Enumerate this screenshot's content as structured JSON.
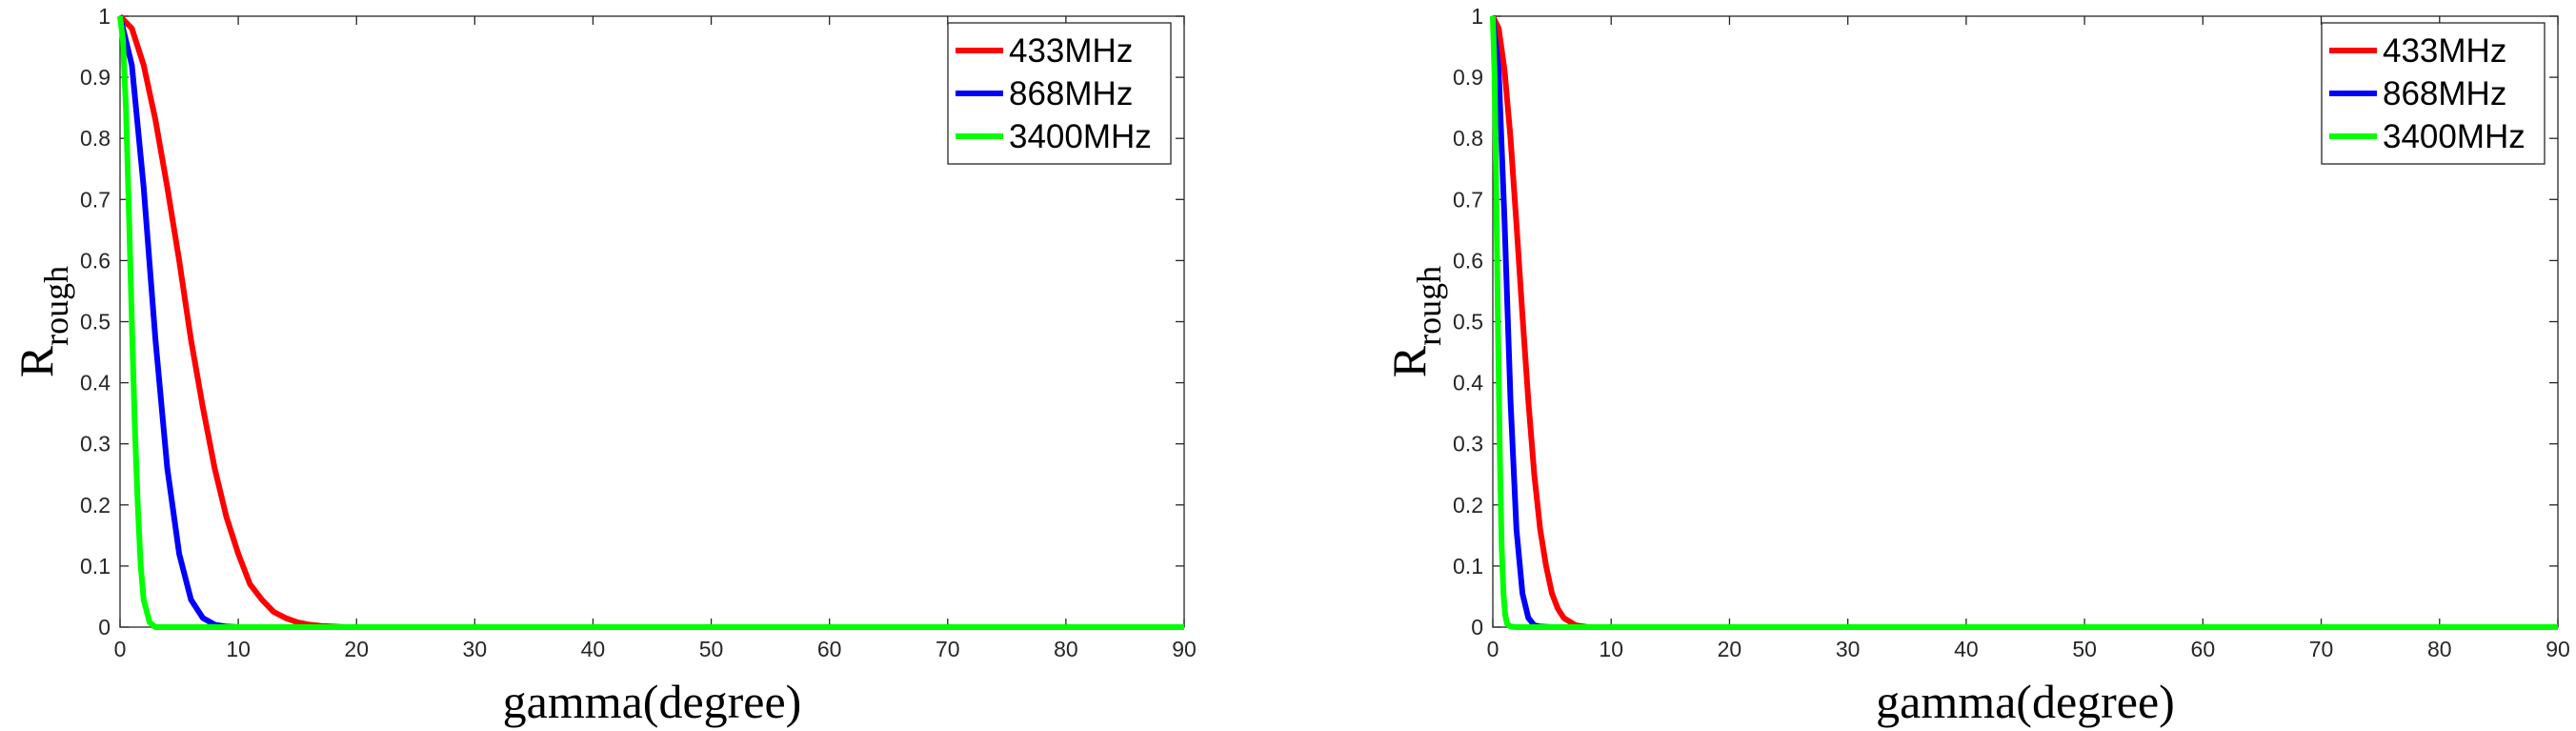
{
  "chart_data": [
    {
      "type": "line",
      "xlabel": "gamma(degree)",
      "ylabel_main": "R",
      "ylabel_sub": "rough",
      "xlim": [
        0,
        90
      ],
      "ylim": [
        0,
        1
      ],
      "xticks": [
        0,
        10,
        20,
        30,
        40,
        50,
        60,
        70,
        80,
        90
      ],
      "yticks": [
        0,
        0.1,
        0.2,
        0.3,
        0.4,
        0.5,
        0.6,
        0.7,
        0.8,
        0.9,
        1
      ],
      "grid": false,
      "legend_position": "top-right",
      "series": [
        {
          "name": "433MHz",
          "color": "#ff0000",
          "x": [
            0,
            1,
            2,
            3,
            4,
            5,
            6,
            7,
            8,
            9,
            10,
            11,
            12,
            13,
            14,
            15,
            16,
            17,
            18,
            19,
            20,
            30,
            40,
            50,
            60,
            70,
            80,
            90
          ],
          "y": [
            1,
            0.98,
            0.92,
            0.83,
            0.72,
            0.6,
            0.47,
            0.36,
            0.26,
            0.18,
            0.12,
            0.07,
            0.045,
            0.025,
            0.015,
            0.008,
            0.004,
            0.002,
            0.001,
            0,
            0,
            0,
            0,
            0,
            0,
            0,
            0,
            0
          ]
        },
        {
          "name": "868MHz",
          "color": "#0000ff",
          "x": [
            0,
            1,
            2,
            3,
            4,
            5,
            6,
            7,
            8,
            9,
            10,
            15,
            20,
            30,
            40,
            50,
            60,
            70,
            80,
            90
          ],
          "y": [
            1,
            0.92,
            0.72,
            0.47,
            0.26,
            0.12,
            0.045,
            0.015,
            0.004,
            0.001,
            0,
            0,
            0,
            0,
            0,
            0,
            0,
            0,
            0,
            0
          ]
        },
        {
          "name": "3400MHz",
          "color": "#00ff00",
          "x": [
            0,
            0.25,
            0.5,
            0.75,
            1,
            1.25,
            1.5,
            1.75,
            2,
            2.5,
            3,
            5,
            10,
            20,
            30,
            40,
            50,
            60,
            70,
            80,
            90
          ],
          "y": [
            1,
            0.96,
            0.85,
            0.68,
            0.5,
            0.33,
            0.2,
            0.1,
            0.045,
            0.008,
            0,
            0,
            0,
            0,
            0,
            0,
            0,
            0,
            0,
            0,
            0
          ]
        }
      ]
    },
    {
      "type": "line",
      "xlabel": "gamma(degree)",
      "ylabel_main": "R",
      "ylabel_sub": "rough",
      "xlim": [
        0,
        90
      ],
      "ylim": [
        0,
        1
      ],
      "xticks": [
        0,
        10,
        20,
        30,
        40,
        50,
        60,
        70,
        80,
        90
      ],
      "yticks": [
        0,
        0.1,
        0.2,
        0.3,
        0.4,
        0.5,
        0.6,
        0.7,
        0.8,
        0.9,
        1
      ],
      "grid": false,
      "legend_position": "top-right",
      "series": [
        {
          "name": "433MHz",
          "color": "#ff0000",
          "x": [
            0,
            0.5,
            1,
            1.5,
            2,
            2.5,
            3,
            3.5,
            4,
            4.5,
            5,
            5.5,
            6,
            7,
            8,
            10,
            20,
            30,
            40,
            50,
            60,
            70,
            80,
            90
          ],
          "y": [
            1,
            0.98,
            0.91,
            0.8,
            0.66,
            0.51,
            0.37,
            0.25,
            0.16,
            0.1,
            0.055,
            0.03,
            0.015,
            0.003,
            0,
            0,
            0,
            0,
            0,
            0,
            0,
            0,
            0,
            0
          ]
        },
        {
          "name": "868MHz",
          "color": "#0000ff",
          "x": [
            0,
            0.5,
            1,
            1.5,
            2,
            2.5,
            3,
            3.5,
            4,
            5,
            6,
            10,
            20,
            30,
            40,
            50,
            60,
            70,
            80,
            90
          ],
          "y": [
            1,
            0.91,
            0.66,
            0.37,
            0.16,
            0.055,
            0.015,
            0.003,
            0.001,
            0,
            0,
            0,
            0,
            0,
            0,
            0,
            0,
            0,
            0,
            0
          ]
        },
        {
          "name": "3400MHz",
          "color": "#00ff00",
          "x": [
            0,
            0.15,
            0.3,
            0.45,
            0.6,
            0.75,
            0.9,
            1.05,
            1.2,
            1.5,
            2,
            3,
            10,
            20,
            30,
            40,
            50,
            60,
            70,
            80,
            90
          ],
          "y": [
            1,
            0.9,
            0.7,
            0.47,
            0.27,
            0.13,
            0.055,
            0.02,
            0.006,
            0.001,
            0,
            0,
            0,
            0,
            0,
            0,
            0,
            0,
            0,
            0,
            0
          ]
        }
      ]
    }
  ]
}
